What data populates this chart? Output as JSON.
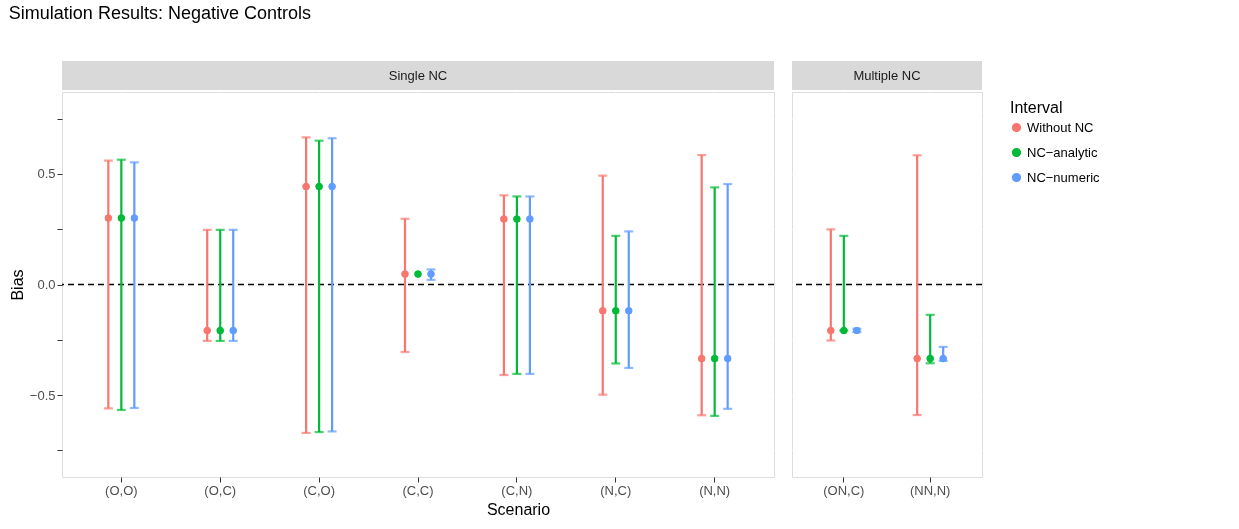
{
  "chart_data": [
    {
      "type": "scatter",
      "title": "Simulation Results: Negative Controls",
      "subtitle": "Single NC",
      "xlabel": "Scenario",
      "ylabel": "Bias",
      "legend_title": "Interval",
      "legend": "right",
      "grid": true,
      "marker": "circle",
      "categories": [
        "(O,O)",
        "(O,C)",
        "(C,O)",
        "(C,C)",
        "(C,N)",
        "(N,C)",
        "(N,N)"
      ],
      "ylim": [
        -0.87,
        0.87
      ],
      "yticks": [
        {
          "value": -0.75,
          "label": null
        },
        {
          "value": -0.5,
          "label": "−0.5"
        },
        {
          "value": -0.25,
          "label": null
        },
        {
          "value": 0,
          "label": "0.0"
        },
        {
          "value": 0.25,
          "label": null
        },
        {
          "value": 0.5,
          "label": "0.5"
        },
        {
          "value": 0.75,
          "label": null
        }
      ],
      "ref_lines": [
        {
          "axis": "y",
          "value": 0,
          "color": "#000000",
          "line_style": "dashed"
        }
      ],
      "series": [
        {
          "name": "Without NC",
          "color": "#f8766d",
          "values": [
            0.3,
            -0.208,
            0.443,
            0.047,
            0.296,
            -0.119,
            -0.335
          ],
          "errors": [
            [
              -0.56,
              0.56
            ],
            [
              -0.255,
              0.247
            ],
            [
              -0.671,
              0.665
            ],
            [
              -0.305,
              0.297
            ],
            [
              -0.409,
              0.403
            ],
            [
              -0.498,
              0.492
            ],
            [
              -0.591,
              0.585
            ]
          ]
        },
        {
          "name": "NC−analytic",
          "color": "#00ba38",
          "values": [
            0.3,
            -0.208,
            0.443,
            0.047,
            0.296,
            -0.119,
            -0.335
          ],
          "errors": [
            [
              -0.567,
              0.564
            ],
            [
              -0.255,
              0.247
            ],
            [
              -0.667,
              0.65
            ],
            null,
            [
              -0.404,
              0.398
            ],
            [
              -0.357,
              0.22
            ],
            [
              -0.594,
              0.439
            ]
          ]
        },
        {
          "name": "NC−numeric",
          "color": "#619cff",
          "values": [
            0.3,
            -0.208,
            0.443,
            0.047,
            0.296,
            -0.119,
            -0.335
          ],
          "errors": [
            [
              -0.558,
              0.552
            ],
            [
              -0.255,
              0.247
            ],
            [
              -0.664,
              0.661
            ],
            [
              0.021,
              0.068
            ],
            [
              -0.404,
              0.398
            ],
            [
              -0.377,
              0.24
            ],
            [
              -0.562,
              0.454
            ]
          ]
        }
      ]
    },
    {
      "type": "scatter",
      "subtitle": "Multiple NC",
      "legend": false,
      "grid": true,
      "marker": "circle",
      "tick_labels": "x",
      "categories": [
        "(ON,C)",
        "(NN,N)"
      ],
      "ylim": [
        -0.87,
        0.87
      ],
      "yticks": [
        {
          "value": -0.75,
          "label": null
        },
        {
          "value": -0.5,
          "label": null
        },
        {
          "value": -0.25,
          "label": null
        },
        {
          "value": 0,
          "label": null
        },
        {
          "value": 0.25,
          "label": null
        },
        {
          "value": 0.5,
          "label": null
        },
        {
          "value": 0.75,
          "label": null
        }
      ],
      "ref_lines": [
        {
          "axis": "y",
          "value": 0,
          "color": "#000000",
          "line_style": "dashed"
        }
      ],
      "series": [
        {
          "name": "Without NC",
          "color": "#f8766d",
          "values": [
            -0.208,
            -0.335
          ],
          "errors": [
            [
              -0.253,
              0.249
            ],
            [
              -0.59,
              0.584
            ]
          ]
        },
        {
          "name": "NC−analytic",
          "color": "#00ba38",
          "values": [
            -0.208,
            -0.335
          ],
          "errors": [
            [
              -0.208,
              0.22
            ],
            [
              -0.356,
              -0.137
            ]
          ]
        },
        {
          "name": "NC−numeric",
          "color": "#619cff",
          "values": [
            -0.208,
            -0.335
          ],
          "errors": [
            [
              -0.215,
              -0.2
            ],
            [
              -0.345,
              -0.282
            ]
          ]
        }
      ]
    }
  ]
}
